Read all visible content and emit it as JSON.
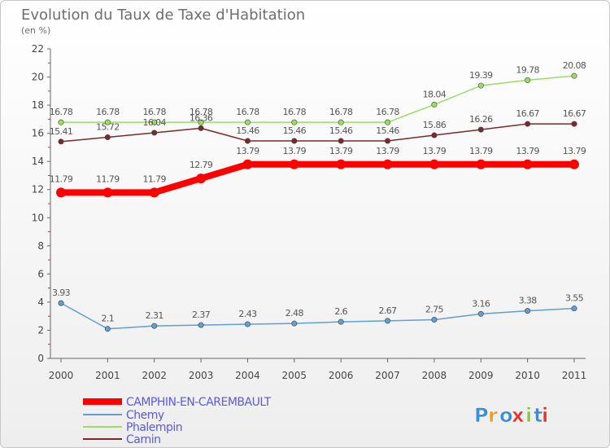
{
  "chart_data": {
    "type": "line",
    "title": "Evolution du Taux de Taxe d'Habitation",
    "subtitle": "(en %)",
    "categories": [
      "2000",
      "2001",
      "2002",
      "2003",
      "2004",
      "2005",
      "2006",
      "2007",
      "2008",
      "2009",
      "2010",
      "2011"
    ],
    "ylim": [
      0,
      22
    ],
    "yticks": [
      0,
      2,
      4,
      6,
      8,
      10,
      12,
      14,
      16,
      18,
      20,
      22
    ],
    "grid": false,
    "legend_position": "bottom-left",
    "series": [
      {
        "name": "CAMPHIN-EN-CAREMBAULT",
        "color": "#ff0000",
        "values": [
          11.79,
          11.79,
          11.79,
          12.79,
          13.79,
          13.79,
          13.79,
          13.79,
          13.79,
          13.79,
          13.79,
          13.79
        ],
        "labels": [
          "11.79",
          "11.79",
          "11.79",
          "12.79",
          "13.79",
          "13.79",
          "13.79",
          "13.79",
          "13.79",
          "13.79",
          "13.79",
          "13.79"
        ]
      },
      {
        "name": "Chemy",
        "color": "#5f9fd4",
        "values": [
          3.93,
          2.1,
          2.31,
          2.37,
          2.43,
          2.48,
          2.6,
          2.67,
          2.75,
          3.16,
          3.38,
          3.55
        ],
        "labels": [
          "3.93",
          "2.1",
          "2.31",
          "2.37",
          "2.43",
          "2.48",
          "2.6",
          "2.67",
          "2.75",
          "3.16",
          "3.38",
          "3.55"
        ]
      },
      {
        "name": "Phalempin",
        "color": "#99dd66",
        "values": [
          16.78,
          16.78,
          16.78,
          16.78,
          16.78,
          16.78,
          16.78,
          16.78,
          18.04,
          19.39,
          19.78,
          20.08
        ],
        "labels": [
          "16.78",
          "16.78",
          "16.78",
          "16.78",
          "16.78",
          "16.78",
          "16.78",
          "16.78",
          "18.04",
          "19.39",
          "19.78",
          "20.08"
        ]
      },
      {
        "name": "Carnin",
        "color": "#7a2a2a",
        "values": [
          15.41,
          15.72,
          16.04,
          16.36,
          15.46,
          15.46,
          15.46,
          15.46,
          15.86,
          16.26,
          16.67,
          16.67
        ],
        "labels": [
          "15.41",
          "15.72",
          "16.04",
          "16.36",
          "15.46",
          "15.46",
          "15.46",
          "15.46",
          "15.86",
          "16.26",
          "16.67",
          "16.67"
        ]
      }
    ]
  },
  "logo": {
    "text": "Proxiti",
    "colors": [
      "#3a8ed8",
      "#f29a1e",
      "#3a8ed8",
      "#e8312a",
      "#8cc63f",
      "#3a8ed8",
      "#e8312a"
    ]
  }
}
